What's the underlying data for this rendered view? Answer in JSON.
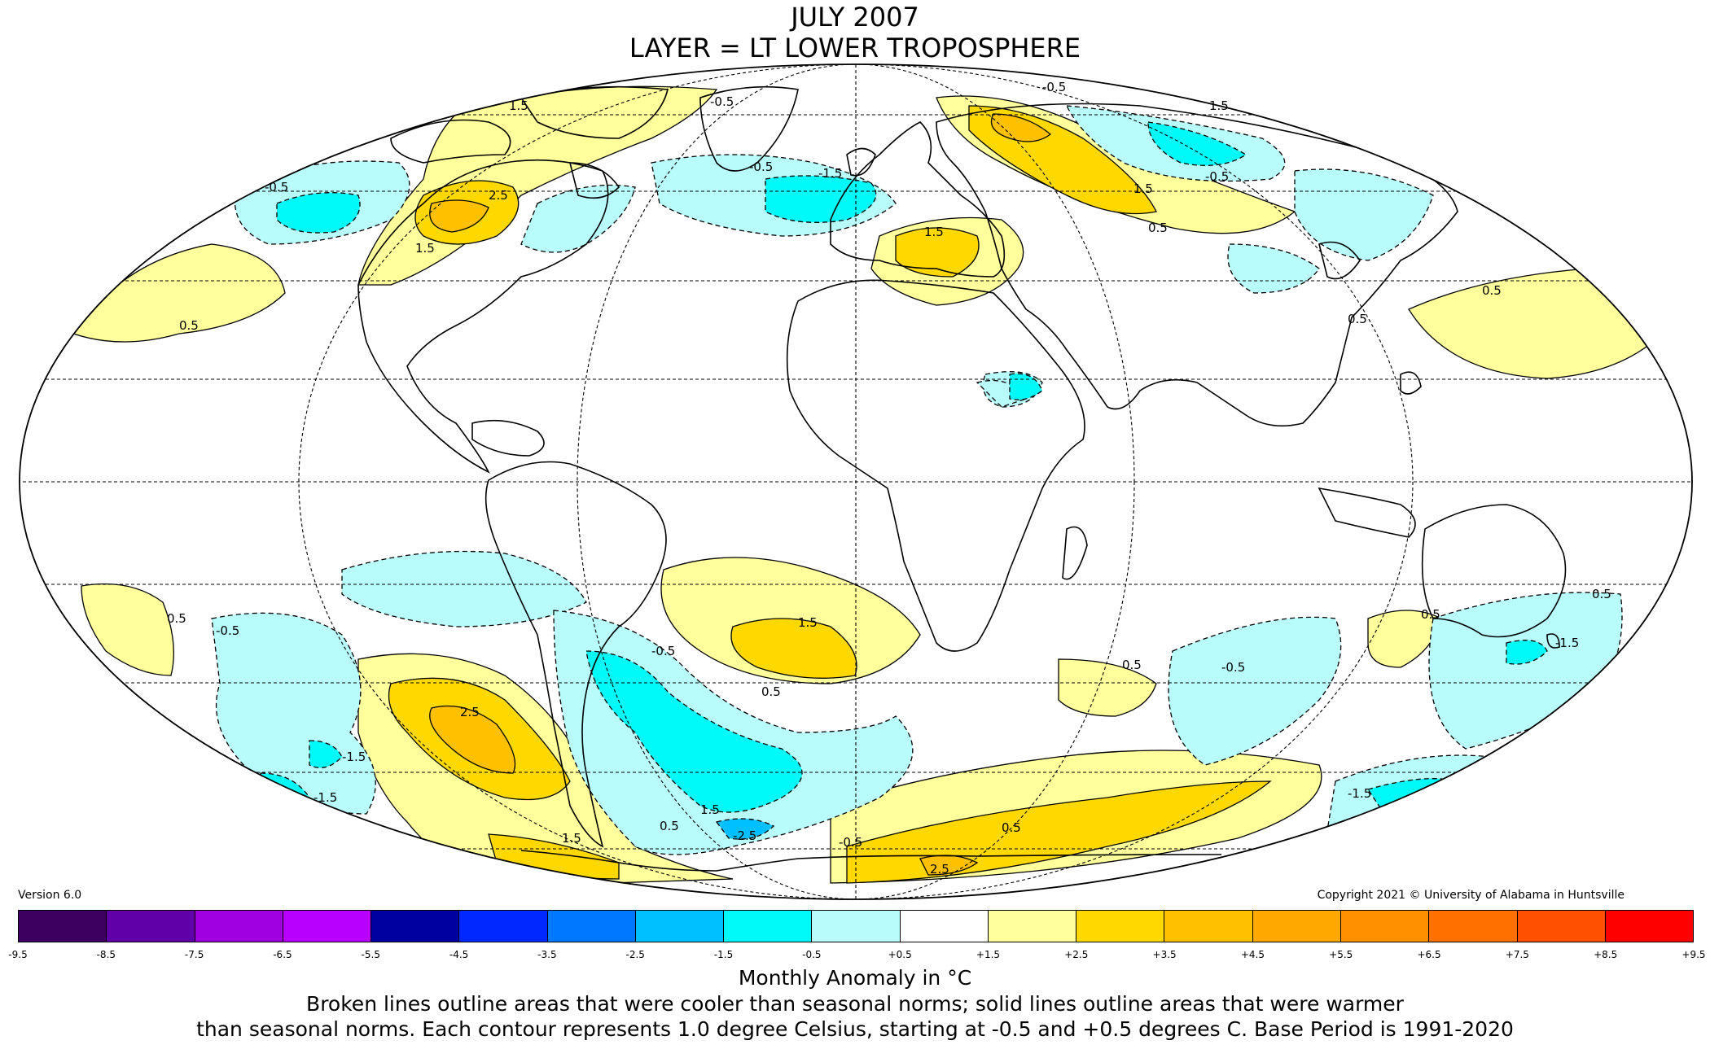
{
  "title_line1": "JULY 2007",
  "title_line2": "LAYER = LT LOWER TROPOSPHERE",
  "version": "Version 6.0",
  "copyright": "Copyright 2021 © University of Alabama in Huntsville",
  "colors": {
    "scale": [
      "#3d0060",
      "#6000a8",
      "#a000e0",
      "#b800ff",
      "#0000a0",
      "#0028ff",
      "#0078ff",
      "#00c0ff",
      "#00e6ff",
      "#00fafa",
      "#b8fcfc",
      "#ffffff",
      "#ffff9c",
      "#ffd800",
      "#ffc000",
      "#ffa800",
      "#ff9000",
      "#ff7000",
      "#ff5000",
      "#ff0000",
      "#e00000",
      "#c00000"
    ],
    "ocean": "#ffffff",
    "coast": "#000000"
  },
  "colorbar_ticks": [
    "-9.5",
    "-8.5",
    "-7.5",
    "-6.5",
    "-5.5",
    "-4.5",
    "-3.5",
    "-2.5",
    "-1.5",
    "-0.5",
    "+0.5",
    "+1.5",
    "+2.5",
    "+3.5",
    "+4.5",
    "+5.5",
    "+6.5",
    "+7.5",
    "+8.5",
    "+9.5"
  ],
  "caption_units": "Monthly Anomaly in °C",
  "caption_line1": "Broken lines outline areas that were cooler than seasonal norms; solid lines outline areas that were warmer",
  "caption_line2": "than seasonal norms. Each contour represents 1.0 degree Celsius, starting at -0.5 and +0.5 degrees C. Base Period is 1991-2020",
  "contour_labels": [
    "0.5",
    "1.5",
    "2.5",
    "-0.5",
    "-1.5",
    "-2.5"
  ]
}
